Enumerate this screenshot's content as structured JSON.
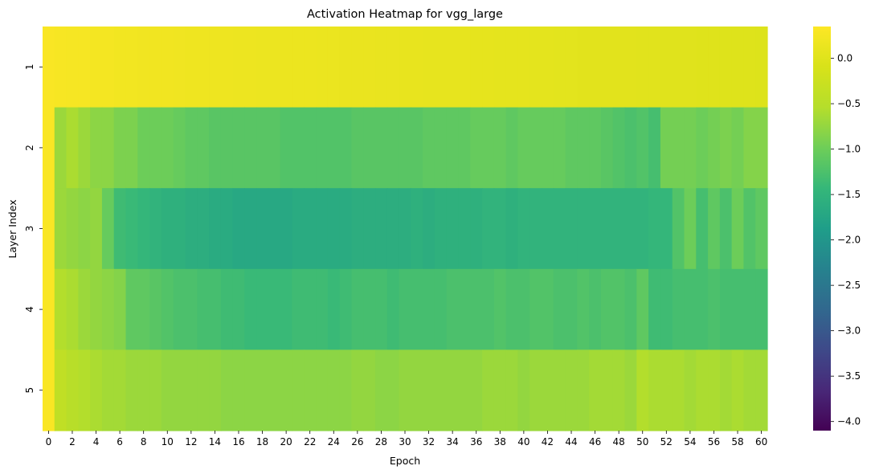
{
  "chart_data": {
    "type": "heatmap",
    "title": "Activation Heatmap for vgg_large",
    "xlabel": "Epoch",
    "ylabel": "Layer Index",
    "x": [
      0,
      1,
      2,
      3,
      4,
      5,
      6,
      7,
      8,
      9,
      10,
      11,
      12,
      13,
      14,
      15,
      16,
      17,
      18,
      19,
      20,
      21,
      22,
      23,
      24,
      25,
      26,
      27,
      28,
      29,
      30,
      31,
      32,
      33,
      34,
      35,
      36,
      37,
      38,
      39,
      40,
      41,
      42,
      43,
      44,
      45,
      46,
      47,
      48,
      49,
      50,
      51,
      52,
      53,
      54,
      55,
      56,
      57,
      58,
      59,
      60
    ],
    "x_tick_labels": [
      "0",
      "2",
      "4",
      "6",
      "8",
      "10",
      "12",
      "14",
      "16",
      "18",
      "20",
      "22",
      "24",
      "26",
      "28",
      "30",
      "32",
      "34",
      "36",
      "38",
      "40",
      "42",
      "44",
      "46",
      "48",
      "50",
      "52",
      "54",
      "56",
      "58",
      "60"
    ],
    "y_tick_labels": [
      "1",
      "2",
      "3",
      "4",
      "5"
    ],
    "colormap": "viridis",
    "vmin": -4.1,
    "vmax": 0.35,
    "colorbar_ticks": [
      0.0,
      -0.5,
      -1.0,
      -1.5,
      -2.0,
      -2.5,
      -3.0,
      -3.5,
      -4.0
    ],
    "colorbar_tick_labels": [
      "0.0",
      "−0.5",
      "−1.0",
      "−1.5",
      "−2.0",
      "−2.5",
      "−3.0",
      "−3.5",
      "−4.0"
    ],
    "rows": [
      {
        "layer": "1",
        "values": [
          0.3,
          0.28,
          0.26,
          0.26,
          0.24,
          0.24,
          0.22,
          0.22,
          0.21,
          0.2,
          0.2,
          0.19,
          0.18,
          0.18,
          0.17,
          0.17,
          0.16,
          0.16,
          0.15,
          0.15,
          0.14,
          0.14,
          0.14,
          0.13,
          0.13,
          0.12,
          0.12,
          0.12,
          0.11,
          0.11,
          0.1,
          0.1,
          0.09,
          0.09,
          0.08,
          0.08,
          0.07,
          0.07,
          0.06,
          0.06,
          0.06,
          0.05,
          0.05,
          0.04,
          0.04,
          0.03,
          0.03,
          0.02,
          0.02,
          0.02,
          0.01,
          0.01,
          0.0,
          0.0,
          0.0,
          -0.01,
          -0.01,
          -0.02,
          -0.02,
          -0.02,
          -0.03
        ]
      },
      {
        "layer": "2",
        "values": [
          0.3,
          -0.7,
          -0.6,
          -0.7,
          -0.8,
          -0.8,
          -0.9,
          -0.9,
          -1.0,
          -1.0,
          -1.0,
          -1.05,
          -1.1,
          -1.1,
          -1.15,
          -1.15,
          -1.15,
          -1.15,
          -1.15,
          -1.15,
          -1.2,
          -1.2,
          -1.2,
          -1.2,
          -1.2,
          -1.2,
          -1.15,
          -1.15,
          -1.15,
          -1.15,
          -1.15,
          -1.15,
          -1.1,
          -1.1,
          -1.1,
          -1.1,
          -1.05,
          -1.05,
          -1.05,
          -1.1,
          -1.05,
          -1.05,
          -1.05,
          -1.05,
          -1.1,
          -1.1,
          -1.1,
          -1.15,
          -1.2,
          -1.25,
          -1.2,
          -1.3,
          -0.95,
          -0.95,
          -0.95,
          -1.0,
          -0.95,
          -0.9,
          -0.95,
          -0.85,
          -0.85
        ]
      },
      {
        "layer": "3",
        "values": [
          0.3,
          -0.7,
          -0.75,
          -0.8,
          -0.75,
          -1.05,
          -1.35,
          -1.4,
          -1.45,
          -1.5,
          -1.55,
          -1.55,
          -1.6,
          -1.6,
          -1.65,
          -1.65,
          -1.7,
          -1.7,
          -1.7,
          -1.7,
          -1.7,
          -1.65,
          -1.65,
          -1.65,
          -1.65,
          -1.65,
          -1.6,
          -1.6,
          -1.6,
          -1.6,
          -1.6,
          -1.55,
          -1.6,
          -1.55,
          -1.55,
          -1.55,
          -1.55,
          -1.5,
          -1.5,
          -1.55,
          -1.5,
          -1.5,
          -1.5,
          -1.5,
          -1.5,
          -1.5,
          -1.5,
          -1.5,
          -1.5,
          -1.5,
          -1.5,
          -1.45,
          -1.45,
          -1.2,
          -1.0,
          -1.3,
          -1.1,
          -1.25,
          -1.0,
          -1.2,
          -1.1
        ]
      },
      {
        "layer": "4",
        "values": [
          0.3,
          -0.55,
          -0.6,
          -0.7,
          -0.75,
          -0.8,
          -0.85,
          -1.1,
          -1.1,
          -1.15,
          -1.2,
          -1.25,
          -1.25,
          -1.3,
          -1.3,
          -1.35,
          -1.35,
          -1.4,
          -1.4,
          -1.4,
          -1.4,
          -1.35,
          -1.35,
          -1.35,
          -1.4,
          -1.35,
          -1.3,
          -1.3,
          -1.3,
          -1.35,
          -1.3,
          -1.3,
          -1.3,
          -1.3,
          -1.25,
          -1.25,
          -1.25,
          -1.25,
          -1.2,
          -1.25,
          -1.25,
          -1.2,
          -1.2,
          -1.25,
          -1.25,
          -1.2,
          -1.25,
          -1.2,
          -1.2,
          -1.25,
          -1.1,
          -1.35,
          -1.35,
          -1.3,
          -1.3,
          -1.3,
          -1.25,
          -1.3,
          -1.3,
          -1.3,
          -1.3
        ]
      },
      {
        "layer": "5",
        "values": [
          0.3,
          -0.4,
          -0.5,
          -0.55,
          -0.6,
          -0.65,
          -0.65,
          -0.7,
          -0.7,
          -0.7,
          -0.75,
          -0.75,
          -0.75,
          -0.75,
          -0.75,
          -0.8,
          -0.8,
          -0.8,
          -0.8,
          -0.8,
          -0.8,
          -0.8,
          -0.8,
          -0.8,
          -0.8,
          -0.8,
          -0.75,
          -0.75,
          -0.8,
          -0.8,
          -0.75,
          -0.75,
          -0.75,
          -0.75,
          -0.75,
          -0.75,
          -0.75,
          -0.7,
          -0.7,
          -0.7,
          -0.75,
          -0.7,
          -0.7,
          -0.7,
          -0.7,
          -0.7,
          -0.65,
          -0.65,
          -0.65,
          -0.7,
          -0.55,
          -0.6,
          -0.6,
          -0.6,
          -0.65,
          -0.6,
          -0.6,
          -0.65,
          -0.6,
          -0.65,
          -0.65
        ]
      }
    ]
  }
}
